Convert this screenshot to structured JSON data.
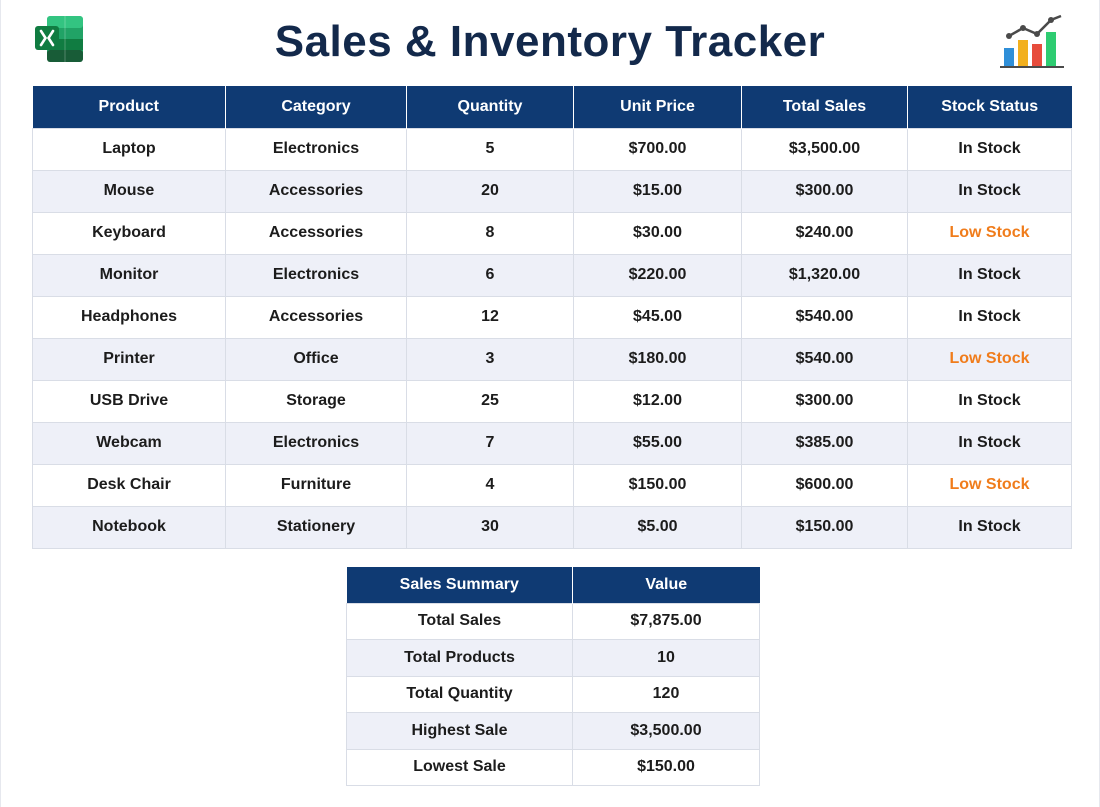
{
  "header": {
    "title": "Sales & Inventory Tracker",
    "left_icon": "excel-logo-icon",
    "right_icon": "bar-chart-trend-icon"
  },
  "colors": {
    "header_bg": "#0f3a73",
    "title": "#13294b",
    "low_stock": "#f07c1b",
    "row_alt": "#eef0f8"
  },
  "inventory": {
    "columns": [
      "Product",
      "Category",
      "Quantity",
      "Unit Price",
      "Total Sales",
      "Stock Status"
    ],
    "rows": [
      {
        "product": "Laptop",
        "category": "Electronics",
        "quantity": "5",
        "unit_price": "$700.00",
        "total_sales": "$3,500.00",
        "status": "In Stock",
        "low": false
      },
      {
        "product": "Mouse",
        "category": "Accessories",
        "quantity": "20",
        "unit_price": "$15.00",
        "total_sales": "$300.00",
        "status": "In Stock",
        "low": false
      },
      {
        "product": "Keyboard",
        "category": "Accessories",
        "quantity": "8",
        "unit_price": "$30.00",
        "total_sales": "$240.00",
        "status": "Low Stock",
        "low": true
      },
      {
        "product": "Monitor",
        "category": "Electronics",
        "quantity": "6",
        "unit_price": "$220.00",
        "total_sales": "$1,320.00",
        "status": "In Stock",
        "low": false
      },
      {
        "product": "Headphones",
        "category": "Accessories",
        "quantity": "12",
        "unit_price": "$45.00",
        "total_sales": "$540.00",
        "status": "In Stock",
        "low": false
      },
      {
        "product": "Printer",
        "category": "Office",
        "quantity": "3",
        "unit_price": "$180.00",
        "total_sales": "$540.00",
        "status": "Low Stock",
        "low": true
      },
      {
        "product": "USB Drive",
        "category": "Storage",
        "quantity": "25",
        "unit_price": "$12.00",
        "total_sales": "$300.00",
        "status": "In Stock",
        "low": false
      },
      {
        "product": "Webcam",
        "category": "Electronics",
        "quantity": "7",
        "unit_price": "$55.00",
        "total_sales": "$385.00",
        "status": "In Stock",
        "low": false
      },
      {
        "product": "Desk Chair",
        "category": "Furniture",
        "quantity": "4",
        "unit_price": "$150.00",
        "total_sales": "$600.00",
        "status": "Low Stock",
        "low": true
      },
      {
        "product": "Notebook",
        "category": "Stationery",
        "quantity": "30",
        "unit_price": "$5.00",
        "total_sales": "$150.00",
        "status": "In Stock",
        "low": false
      }
    ]
  },
  "summary": {
    "columns": [
      "Sales Summary",
      "Value"
    ],
    "rows": [
      {
        "metric": "Total Sales",
        "value": "$7,875.00"
      },
      {
        "metric": "Total Products",
        "value": "10"
      },
      {
        "metric": "Total Quantity",
        "value": "120"
      },
      {
        "metric": "Highest Sale",
        "value": "$3,500.00"
      },
      {
        "metric": "Lowest Sale",
        "value": "$150.00"
      }
    ]
  }
}
